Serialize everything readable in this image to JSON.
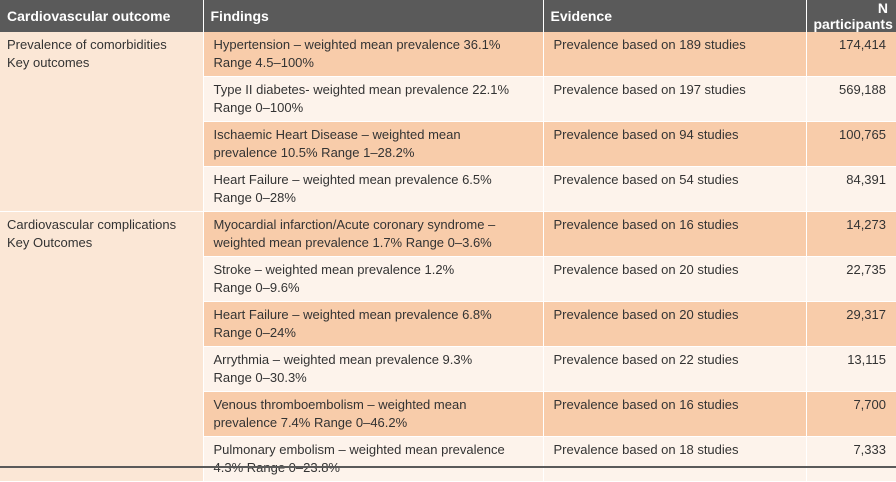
{
  "table": {
    "headers": [
      "Cardiovascular outcome",
      "Findings",
      "Evidence",
      "N participants"
    ],
    "groups": [
      {
        "outcome_lines": [
          "Prevalence of comorbidities",
          "Key outcomes"
        ],
        "rows": [
          {
            "findings": [
              "Hypertension – weighted mean prevalence 36.1%",
              "Range 4.5–100%"
            ],
            "evidence": "Prevalence based on 189 studies",
            "n": "174,414"
          },
          {
            "findings": [
              "Type II diabetes- weighted mean prevalence 22.1%",
              "Range 0–100%"
            ],
            "evidence": "Prevalence based on 197 studies",
            "n": "569,188"
          },
          {
            "findings": [
              "Ischaemic Heart Disease – weighted mean",
              "prevalence 10.5% Range 1–28.2%"
            ],
            "evidence": "Prevalence based on 94 studies",
            "n": "100,765"
          },
          {
            "findings": [
              "Heart Failure – weighted mean prevalence 6.5%",
              "Range 0–28%"
            ],
            "evidence": "Prevalence based on 54 studies",
            "n": "84,391"
          }
        ]
      },
      {
        "outcome_lines": [
          "Cardiovascular complications",
          "Key Outcomes"
        ],
        "rows": [
          {
            "findings": [
              "Myocardial infarction/Acute coronary syndrome –",
              "weighted mean prevalence 1.7% Range 0–3.6%"
            ],
            "evidence": "Prevalence based on 16 studies",
            "n": "14,273"
          },
          {
            "findings": [
              "Stroke – weighted mean prevalence 1.2%",
              "Range 0–9.6%"
            ],
            "evidence": "Prevalence based on 20 studies",
            "n": "22,735"
          },
          {
            "findings": [
              "Heart Failure – weighted mean prevalence 6.8%",
              "Range 0–24%"
            ],
            "evidence": "Prevalence based on 20 studies",
            "n": "29,317"
          },
          {
            "findings": [
              "Arrythmia – weighted mean prevalence 9.3%",
              "Range 0–30.3%"
            ],
            "evidence": "Prevalence based on 22 studies",
            "n": "13,115"
          },
          {
            "findings": [
              "Venous thromboembolism – weighted mean",
              "prevalence 7.4% Range 0–46.2%"
            ],
            "evidence": "Prevalence based on 16 studies",
            "n": "7,700"
          },
          {
            "findings": [
              "Pulmonary embolism – weighted mean prevalence",
              "4.3% Range 0–23.8%"
            ],
            "evidence": "Prevalence based on 18 studies",
            "n": "7,333"
          }
        ]
      }
    ]
  }
}
